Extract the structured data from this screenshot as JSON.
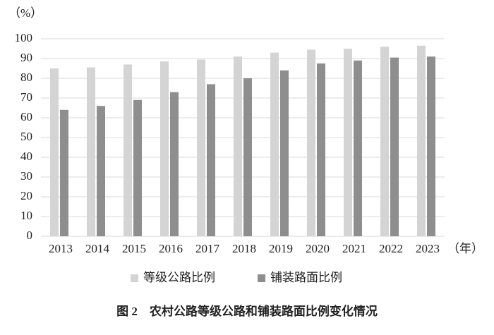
{
  "chart_data": {
    "type": "bar",
    "title": "图 2　农村公路等级公路和铺装路面比例变化情况",
    "y_label": "（%）",
    "x_label": "（年）",
    "categories": [
      "2013",
      "2014",
      "2015",
      "2016",
      "2017",
      "2018",
      "2019",
      "2020",
      "2021",
      "2022",
      "2023"
    ],
    "series": [
      {
        "name": "等级公路比例",
        "color": "#d4d4d4",
        "values": [
          85,
          85.5,
          87,
          88.5,
          89.5,
          91,
          93,
          94.5,
          95,
          96,
          96.5
        ]
      },
      {
        "name": "铺装路面比例",
        "color": "#8e8e8e",
        "values": [
          64,
          66,
          69,
          73,
          77,
          80,
          84,
          87.5,
          89,
          90.5,
          91
        ]
      }
    ],
    "ylim": [
      0,
      100
    ],
    "yticks": [
      0,
      10,
      20,
      30,
      40,
      50,
      60,
      70,
      80,
      90,
      100
    ],
    "grid": true,
    "legend": "bottom"
  }
}
